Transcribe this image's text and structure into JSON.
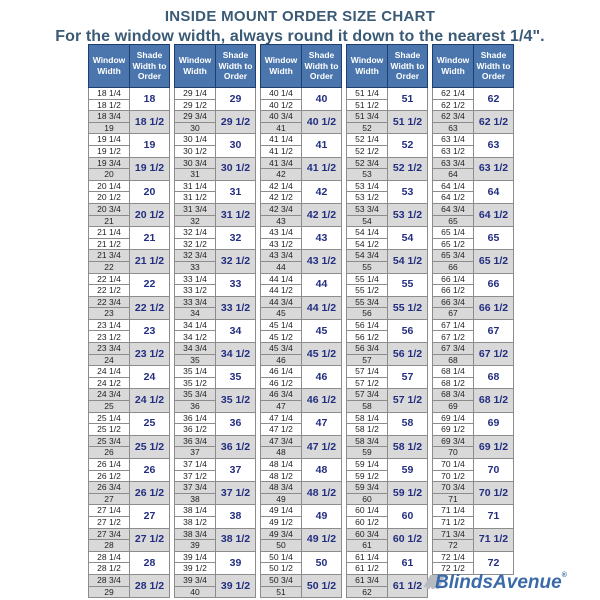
{
  "chart_data": {
    "type": "table",
    "title": "INSIDE MOUNT ORDER SIZE CHART",
    "subtitle": "For the window width, always round it down to the nearest 1/4\".",
    "column_headers": [
      "Window Width",
      "Shade Width to Order"
    ],
    "layout": {
      "column_pairs": 5,
      "rows_per_group": 2,
      "grid": "on"
    },
    "colors": {
      "header_bg": "#4a76ad",
      "header_text": "#ffffff",
      "title_text": "#3a5a75",
      "shade_value_text": "#232e80",
      "alt_row_bg": "#d9d9d9",
      "logo_blue": "#3a6aaa"
    },
    "columns": [
      {
        "groups": [
          {
            "w": [
              "18 1/4",
              "18 1/2"
            ],
            "s": "18"
          },
          {
            "w": [
              "18 3/4",
              "19"
            ],
            "s": "18 1/2"
          },
          {
            "w": [
              "19 1/4",
              "19 1/2"
            ],
            "s": "19"
          },
          {
            "w": [
              "19 3/4",
              "20"
            ],
            "s": "19 1/2"
          },
          {
            "w": [
              "20 1/4",
              "20 1/2"
            ],
            "s": "20"
          },
          {
            "w": [
              "20 3/4",
              "21"
            ],
            "s": "20 1/2"
          },
          {
            "w": [
              "21 1/4",
              "21 1/2"
            ],
            "s": "21"
          },
          {
            "w": [
              "21 3/4",
              "22"
            ],
            "s": "21 1/2"
          },
          {
            "w": [
              "22 1/4",
              "22 1/2"
            ],
            "s": "22"
          },
          {
            "w": [
              "22 3/4",
              "23"
            ],
            "s": "22 1/2"
          },
          {
            "w": [
              "23 1/4",
              "23 1/2"
            ],
            "s": "23"
          },
          {
            "w": [
              "23 3/4",
              "24"
            ],
            "s": "23 1/2"
          },
          {
            "w": [
              "24 1/4",
              "24 1/2"
            ],
            "s": "24"
          },
          {
            "w": [
              "24 3/4",
              "25"
            ],
            "s": "24 1/2"
          },
          {
            "w": [
              "25 1/4",
              "25 1/2"
            ],
            "s": "25"
          },
          {
            "w": [
              "25 3/4",
              "26"
            ],
            "s": "25 1/2"
          },
          {
            "w": [
              "26 1/4",
              "26 1/2"
            ],
            "s": "26"
          },
          {
            "w": [
              "26 3/4",
              "27"
            ],
            "s": "26 1/2"
          },
          {
            "w": [
              "27 1/4",
              "27 1/2"
            ],
            "s": "27"
          },
          {
            "w": [
              "27 3/4",
              "28"
            ],
            "s": "27 1/2"
          },
          {
            "w": [
              "28 1/4",
              "28 1/2"
            ],
            "s": "28"
          },
          {
            "w": [
              "28 3/4",
              "29"
            ],
            "s": "28 1/2"
          }
        ]
      },
      {
        "groups": [
          {
            "w": [
              "29 1/4",
              "29 1/2"
            ],
            "s": "29"
          },
          {
            "w": [
              "29 3/4",
              "30"
            ],
            "s": "29 1/2"
          },
          {
            "w": [
              "30 1/4",
              "30 1/2"
            ],
            "s": "30"
          },
          {
            "w": [
              "30 3/4",
              "31"
            ],
            "s": "30 1/2"
          },
          {
            "w": [
              "31 1/4",
              "31 1/2"
            ],
            "s": "31"
          },
          {
            "w": [
              "31 3/4",
              "32"
            ],
            "s": "31 1/2"
          },
          {
            "w": [
              "32 1/4",
              "32 1/2"
            ],
            "s": "32"
          },
          {
            "w": [
              "32 3/4",
              "33"
            ],
            "s": "32 1/2"
          },
          {
            "w": [
              "33 1/4",
              "33 1/2"
            ],
            "s": "33"
          },
          {
            "w": [
              "33 3/4",
              "34"
            ],
            "s": "33 1/2"
          },
          {
            "w": [
              "34 1/4",
              "34 1/2"
            ],
            "s": "34"
          },
          {
            "w": [
              "34 3/4",
              "35"
            ],
            "s": "34 1/2"
          },
          {
            "w": [
              "35 1/4",
              "35 1/2"
            ],
            "s": "35"
          },
          {
            "w": [
              "35 3/4",
              "36"
            ],
            "s": "35 1/2"
          },
          {
            "w": [
              "36 1/4",
              "36 1/2"
            ],
            "s": "36"
          },
          {
            "w": [
              "36 3/4",
              "37"
            ],
            "s": "36 1/2"
          },
          {
            "w": [
              "37 1/4",
              "37 1/2"
            ],
            "s": "37"
          },
          {
            "w": [
              "37 3/4",
              "38"
            ],
            "s": "37 1/2"
          },
          {
            "w": [
              "38 1/4",
              "38 1/2"
            ],
            "s": "38"
          },
          {
            "w": [
              "38 3/4",
              "39"
            ],
            "s": "38 1/2"
          },
          {
            "w": [
              "39 1/4",
              "39 1/2"
            ],
            "s": "39"
          },
          {
            "w": [
              "39 3/4",
              "40"
            ],
            "s": "39 1/2"
          }
        ]
      },
      {
        "groups": [
          {
            "w": [
              "40 1/4",
              "40 1/2"
            ],
            "s": "40"
          },
          {
            "w": [
              "40 3/4",
              "41"
            ],
            "s": "40 1/2"
          },
          {
            "w": [
              "41 1/4",
              "41 1/2"
            ],
            "s": "41"
          },
          {
            "w": [
              "41 3/4",
              "42"
            ],
            "s": "41 1/2"
          },
          {
            "w": [
              "42 1/4",
              "42 1/2"
            ],
            "s": "42"
          },
          {
            "w": [
              "42 3/4",
              "43"
            ],
            "s": "42 1/2"
          },
          {
            "w": [
              "43 1/4",
              "43 1/2"
            ],
            "s": "43"
          },
          {
            "w": [
              "43 3/4",
              "44"
            ],
            "s": "43 1/2"
          },
          {
            "w": [
              "44 1/4",
              "44 1/2"
            ],
            "s": "44"
          },
          {
            "w": [
              "44 3/4",
              "45"
            ],
            "s": "44 1/2"
          },
          {
            "w": [
              "45 1/4",
              "45 1/2"
            ],
            "s": "45"
          },
          {
            "w": [
              "45 3/4",
              "46"
            ],
            "s": "45 1/2"
          },
          {
            "w": [
              "46 1/4",
              "46 1/2"
            ],
            "s": "46"
          },
          {
            "w": [
              "46 3/4",
              "47"
            ],
            "s": "46 1/2"
          },
          {
            "w": [
              "47 1/4",
              "47 1/2"
            ],
            "s": "47"
          },
          {
            "w": [
              "47 3/4",
              "48"
            ],
            "s": "47 1/2"
          },
          {
            "w": [
              "48 1/4",
              "48 1/2"
            ],
            "s": "48"
          },
          {
            "w": [
              "48 3/4",
              "49"
            ],
            "s": "48 1/2"
          },
          {
            "w": [
              "49 1/4",
              "49 1/2"
            ],
            "s": "49"
          },
          {
            "w": [
              "49 3/4",
              "50"
            ],
            "s": "49 1/2"
          },
          {
            "w": [
              "50 1/4",
              "50 1/2"
            ],
            "s": "50"
          },
          {
            "w": [
              "50 3/4",
              "51"
            ],
            "s": "50 1/2"
          }
        ]
      },
      {
        "groups": [
          {
            "w": [
              "51 1/4",
              "51 1/2"
            ],
            "s": "51"
          },
          {
            "w": [
              "51 3/4",
              "52"
            ],
            "s": "51 1/2"
          },
          {
            "w": [
              "52 1/4",
              "52 1/2"
            ],
            "s": "52"
          },
          {
            "w": [
              "52 3/4",
              "53"
            ],
            "s": "52 1/2"
          },
          {
            "w": [
              "53 1/4",
              "53 1/2"
            ],
            "s": "53"
          },
          {
            "w": [
              "53 3/4",
              "54"
            ],
            "s": "53 1/2"
          },
          {
            "w": [
              "54 1/4",
              "54 1/2"
            ],
            "s": "54"
          },
          {
            "w": [
              "54 3/4",
              "55"
            ],
            "s": "54 1/2"
          },
          {
            "w": [
              "55 1/4",
              "55 1/2"
            ],
            "s": "55"
          },
          {
            "w": [
              "55 3/4",
              "56"
            ],
            "s": "55 1/2"
          },
          {
            "w": [
              "56 1/4",
              "56 1/2"
            ],
            "s": "56"
          },
          {
            "w": [
              "56 3/4",
              "57"
            ],
            "s": "56 1/2"
          },
          {
            "w": [
              "57 1/4",
              "57 1/2"
            ],
            "s": "57"
          },
          {
            "w": [
              "57 3/4",
              "58"
            ],
            "s": "57 1/2"
          },
          {
            "w": [
              "58 1/4",
              "58 1/2"
            ],
            "s": "58"
          },
          {
            "w": [
              "58 3/4",
              "59"
            ],
            "s": "58 1/2"
          },
          {
            "w": [
              "59 1/4",
              "59 1/2"
            ],
            "s": "59"
          },
          {
            "w": [
              "59 3/4",
              "60"
            ],
            "s": "59 1/2"
          },
          {
            "w": [
              "60 1/4",
              "60 1/2"
            ],
            "s": "60"
          },
          {
            "w": [
              "60 3/4",
              "61"
            ],
            "s": "60 1/2"
          },
          {
            "w": [
              "61 1/4",
              "61 1/2"
            ],
            "s": "61"
          },
          {
            "w": [
              "61 3/4",
              "62"
            ],
            "s": "61 1/2"
          }
        ]
      },
      {
        "groups": [
          {
            "w": [
              "62 1/4",
              "62 1/2"
            ],
            "s": "62"
          },
          {
            "w": [
              "62 3/4",
              "63"
            ],
            "s": "62 1/2"
          },
          {
            "w": [
              "63 1/4",
              "63 1/2"
            ],
            "s": "63"
          },
          {
            "w": [
              "63 3/4",
              "64"
            ],
            "s": "63 1/2"
          },
          {
            "w": [
              "64 1/4",
              "64 1/2"
            ],
            "s": "64"
          },
          {
            "w": [
              "64 3/4",
              "65"
            ],
            "s": "64 1/2"
          },
          {
            "w": [
              "65 1/4",
              "65 1/2"
            ],
            "s": "65"
          },
          {
            "w": [
              "65 3/4",
              "66"
            ],
            "s": "65 1/2"
          },
          {
            "w": [
              "66 1/4",
              "66 1/2"
            ],
            "s": "66"
          },
          {
            "w": [
              "66 3/4",
              "67"
            ],
            "s": "66 1/2"
          },
          {
            "w": [
              "67 1/4",
              "67 1/2"
            ],
            "s": "67"
          },
          {
            "w": [
              "67 3/4",
              "68"
            ],
            "s": "67 1/2"
          },
          {
            "w": [
              "68 1/4",
              "68 1/2"
            ],
            "s": "68"
          },
          {
            "w": [
              "68 3/4",
              "69"
            ],
            "s": "68 1/2"
          },
          {
            "w": [
              "69 1/4",
              "69 1/2"
            ],
            "s": "69"
          },
          {
            "w": [
              "69 3/4",
              "70"
            ],
            "s": "69 1/2"
          },
          {
            "w": [
              "70 1/4",
              "70 1/2"
            ],
            "s": "70"
          },
          {
            "w": [
              "70 3/4",
              "71"
            ],
            "s": "70 1/2"
          },
          {
            "w": [
              "71 1/4",
              "71 1/2"
            ],
            "s": "71"
          },
          {
            "w": [
              "71 3/4",
              "72"
            ],
            "s": "71 1/2"
          },
          {
            "w": [
              "72 1/4",
              "72 1/2"
            ],
            "s": "72"
          }
        ]
      }
    ]
  },
  "logo": {
    "text": "BlindsAvenue",
    "mark": "®"
  }
}
